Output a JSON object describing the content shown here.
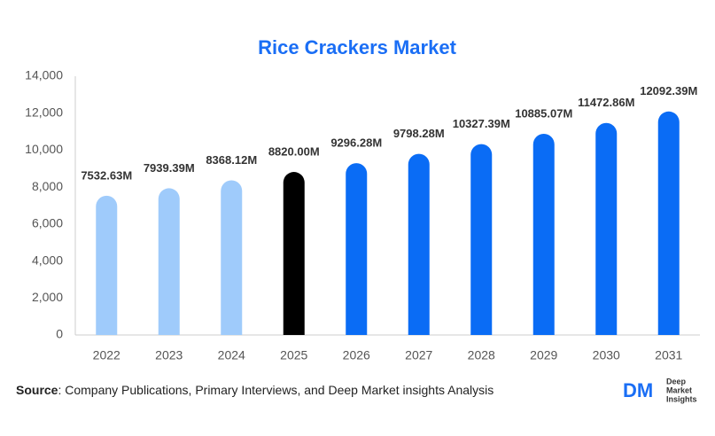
{
  "chart_data": {
    "type": "bar",
    "title": "Rice Crackers Market",
    "categories": [
      "2022",
      "2023",
      "2024",
      "2025",
      "2026",
      "2027",
      "2028",
      "2029",
      "2030",
      "2031"
    ],
    "values": [
      7532.63,
      7939.39,
      8368.12,
      8820.0,
      9296.28,
      9798.28,
      10327.39,
      10885.07,
      11472.86,
      12092.39
    ],
    "value_labels": [
      "7532.63M",
      "7939.39M",
      "8368.12M",
      "8820.00M",
      "9296.28M",
      "9798.28M",
      "10327.39M",
      "10885.07M",
      "11472.86M",
      "12092.39M"
    ],
    "colors": [
      "#9fcbfb",
      "#9fcbfb",
      "#9fcbfb",
      "#000000",
      "#0a6cf5",
      "#0a6cf5",
      "#0a6cf5",
      "#0a6cf5",
      "#0a6cf5",
      "#0a6cf5"
    ],
    "ylim": [
      0,
      14000
    ],
    "yticks": [
      0,
      {
        "value": 2000,
        "label": "2,000"
      },
      {
        "value": 4000,
        "label": "4,000"
      },
      {
        "value": 6000,
        "label": "6,000"
      },
      {
        "value": 8000,
        "label": "8,000"
      },
      {
        "value": 10000,
        "label": "10,000"
      },
      {
        "value": 12000,
        "label": "12,000"
      },
      {
        "value": 14000,
        "label": "14,000"
      }
    ],
    "grid": false
  },
  "source": {
    "label": "Source",
    "text": ": Company Publications, Primary Interviews, and Deep Market insights Analysis"
  },
  "logo": {
    "mark": "DM",
    "lines": [
      "Deep",
      "Market",
      "Insights"
    ]
  }
}
